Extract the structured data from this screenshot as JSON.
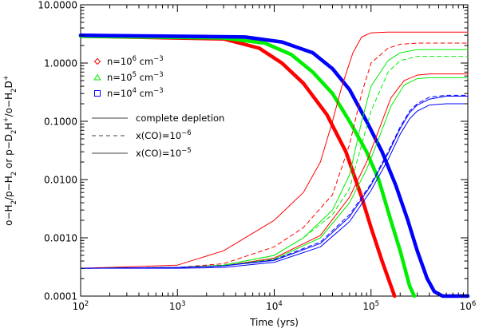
{
  "chart_data": {
    "type": "line",
    "xlabel": "Time (yrs)",
    "ylabel_parts": [
      {
        "t": "o−H",
        "s": ""
      },
      {
        "t": "2",
        "s": "sub"
      },
      {
        "t": "/p−H",
        "s": ""
      },
      {
        "t": "2",
        "s": "sub"
      },
      {
        "t": " or p−D",
        "s": ""
      },
      {
        "t": "2",
        "s": "sub"
      },
      {
        "t": "H",
        "s": ""
      },
      {
        "t": "+",
        "s": "sup"
      },
      {
        "t": "/o−H",
        "s": ""
      },
      {
        "t": "2",
        "s": "sub"
      },
      {
        "t": "D",
        "s": ""
      },
      {
        "t": "+",
        "s": "sup"
      }
    ],
    "x_scale": "log",
    "y_scale": "log",
    "xlim": [
      100,
      1000000
    ],
    "ylim": [
      0.0001,
      10
    ],
    "x_ticks": [
      {
        "v": 100,
        "base": "10",
        "exp": "2"
      },
      {
        "v": 1000,
        "base": "10",
        "exp": "3"
      },
      {
        "v": 10000,
        "base": "10",
        "exp": "4"
      },
      {
        "v": 100000,
        "base": "10",
        "exp": "5"
      },
      {
        "v": 1000000,
        "base": "10",
        "exp": "6"
      }
    ],
    "y_ticks": [
      {
        "v": 0.0001,
        "label": "0.0001"
      },
      {
        "v": 0.001,
        "label": "0.0010"
      },
      {
        "v": 0.01,
        "label": "0.0100"
      },
      {
        "v": 0.1,
        "label": "0.1000"
      },
      {
        "v": 1,
        "label": "1.0000"
      },
      {
        "v": 10,
        "label": "10.0000"
      }
    ],
    "legend": {
      "placement": "top-left",
      "markers": [
        {
          "symbol": "diamond",
          "color": "#ff0000",
          "text": "n=10",
          "exp": "6",
          "unit": " cm",
          "unit_exp": "−3"
        },
        {
          "symbol": "triangle",
          "color": "#00ee00",
          "text": "n=10",
          "exp": "5",
          "unit": " cm",
          "unit_exp": "−3"
        },
        {
          "symbol": "square",
          "color": "#0000ff",
          "text": "n=10",
          "exp": "4",
          "unit": " cm",
          "unit_exp": "−3"
        }
      ],
      "styles": [
        {
          "dash": "solid",
          "text": "complete depletion",
          "exp": ""
        },
        {
          "dash": "dashed",
          "text": "x(CO)=10",
          "exp": "−6"
        },
        {
          "dash": "solid",
          "text": "x(CO)=10",
          "exp": "−5"
        }
      ]
    },
    "series": [
      {
        "color": "#ff0000",
        "dash": "solid",
        "width": "thick",
        "x": [
          100,
          3000,
          7000,
          12000,
          20000,
          35000,
          55000,
          80000,
          100000,
          130000,
          175000
        ],
        "y": [
          2.9,
          2.6,
          1.8,
          1.0,
          0.45,
          0.13,
          0.03,
          0.005,
          0.0015,
          0.0004,
          0.0001
        ]
      },
      {
        "color": "#00ee00",
        "dash": "solid",
        "width": "thick",
        "x": [
          100,
          3000,
          8000,
          15000,
          25000,
          40000,
          60000,
          90000,
          120000,
          160000,
          200000,
          250000,
          280000
        ],
        "y": [
          2.9,
          2.7,
          2.2,
          1.4,
          0.7,
          0.3,
          0.1,
          0.03,
          0.01,
          0.002,
          0.0006,
          0.00015,
          0.0001
        ]
      },
      {
        "color": "#0000ff",
        "dash": "solid",
        "width": "thick",
        "x": [
          100,
          5000,
          12000,
          25000,
          40000,
          60000,
          90000,
          130000,
          180000,
          240000,
          300000,
          380000,
          450000,
          550000,
          1000000
        ],
        "y": [
          3.0,
          2.8,
          2.3,
          1.5,
          0.8,
          0.35,
          0.1,
          0.03,
          0.008,
          0.002,
          0.0006,
          0.0002,
          0.00012,
          0.0001,
          0.0001
        ]
      },
      {
        "color": "#ff0000",
        "dash": "solid",
        "width": "thin",
        "x": [
          100,
          1000,
          3000,
          10000,
          20000,
          30000,
          40000,
          50000,
          65000,
          80000,
          100000,
          150000,
          1000000
        ],
        "y": [
          0.0003,
          0.00034,
          0.0006,
          0.002,
          0.006,
          0.02,
          0.1,
          0.4,
          1.5,
          2.8,
          3.3,
          3.4,
          3.4
        ]
      },
      {
        "color": "#ff0000",
        "dash": "dashed",
        "width": "thin",
        "x": [
          100,
          1000,
          3000,
          10000,
          20000,
          40000,
          60000,
          80000,
          100000,
          150000,
          200000,
          300000,
          1000000
        ],
        "y": [
          0.0003,
          0.00031,
          0.00036,
          0.0007,
          0.0015,
          0.0055,
          0.04,
          0.3,
          1.0,
          1.8,
          2.1,
          2.2,
          2.2
        ]
      },
      {
        "color": "#00ee00",
        "dash": "solid",
        "width": "thin",
        "x": [
          100,
          1000,
          3000,
          10000,
          20000,
          40000,
          60000,
          80000,
          100000,
          150000,
          200000,
          300000,
          1000000
        ],
        "y": [
          0.0003,
          0.00031,
          0.00034,
          0.0005,
          0.001,
          0.003,
          0.012,
          0.1,
          0.4,
          1.1,
          1.5,
          1.7,
          1.7
        ]
      },
      {
        "color": "#00ee00",
        "dash": "dashed",
        "width": "thin",
        "x": [
          100,
          1000,
          3000,
          10000,
          20000,
          40000,
          60000,
          80000,
          100000,
          150000,
          200000,
          300000,
          1000000
        ],
        "y": [
          0.0003,
          0.00031,
          0.00034,
          0.0005,
          0.001,
          0.0025,
          0.007,
          0.04,
          0.15,
          0.7,
          1.1,
          1.3,
          1.3
        ]
      },
      {
        "color": "#ff0000",
        "dash": "solid",
        "width": "thin",
        "x": [
          100,
          1000,
          3000,
          10000,
          30000,
          60000,
          90000,
          120000,
          160000,
          220000,
          300000,
          400000,
          1000000
        ],
        "y": [
          0.0003,
          0.00031,
          0.00033,
          0.00045,
          0.0011,
          0.005,
          0.02,
          0.07,
          0.25,
          0.5,
          0.62,
          0.65,
          0.65
        ]
      },
      {
        "color": "#00ee00",
        "dash": "solid",
        "width": "thin",
        "x": [
          100,
          1000,
          3000,
          10000,
          30000,
          60000,
          90000,
          120000,
          160000,
          220000,
          300000,
          400000,
          1000000
        ],
        "y": [
          0.0003,
          0.00031,
          0.00033,
          0.00043,
          0.001,
          0.004,
          0.015,
          0.05,
          0.18,
          0.42,
          0.54,
          0.56,
          0.56
        ]
      },
      {
        "color": "#0000ff",
        "dash": "dashed",
        "width": "thin",
        "x": [
          100,
          1000,
          3000,
          10000,
          30000,
          60000,
          100000,
          150000,
          200000,
          250000,
          300000,
          400000,
          600000,
          1000000
        ],
        "y": [
          0.0003,
          0.00031,
          0.00033,
          0.00042,
          0.00085,
          0.0025,
          0.0085,
          0.03,
          0.08,
          0.15,
          0.2,
          0.26,
          0.28,
          0.28
        ]
      },
      {
        "color": "#0000ff",
        "dash": "solid",
        "width": "thin",
        "x": [
          100,
          1000,
          3000,
          10000,
          30000,
          60000,
          100000,
          150000,
          200000,
          250000,
          300000,
          400000,
          600000,
          1000000
        ],
        "y": [
          0.0003,
          0.00031,
          0.00033,
          0.00041,
          0.0008,
          0.0023,
          0.008,
          0.028,
          0.075,
          0.14,
          0.19,
          0.24,
          0.27,
          0.27
        ]
      },
      {
        "color": "#0000ff",
        "dash": "solid",
        "width": "thin",
        "x": [
          100,
          1000,
          3000,
          10000,
          30000,
          60000,
          100000,
          150000,
          200000,
          250000,
          300000,
          400000,
          600000,
          1000000
        ],
        "y": [
          0.0003,
          0.0003,
          0.00031,
          0.00038,
          0.0007,
          0.0019,
          0.0065,
          0.022,
          0.06,
          0.11,
          0.15,
          0.19,
          0.2,
          0.2
        ]
      }
    ]
  }
}
